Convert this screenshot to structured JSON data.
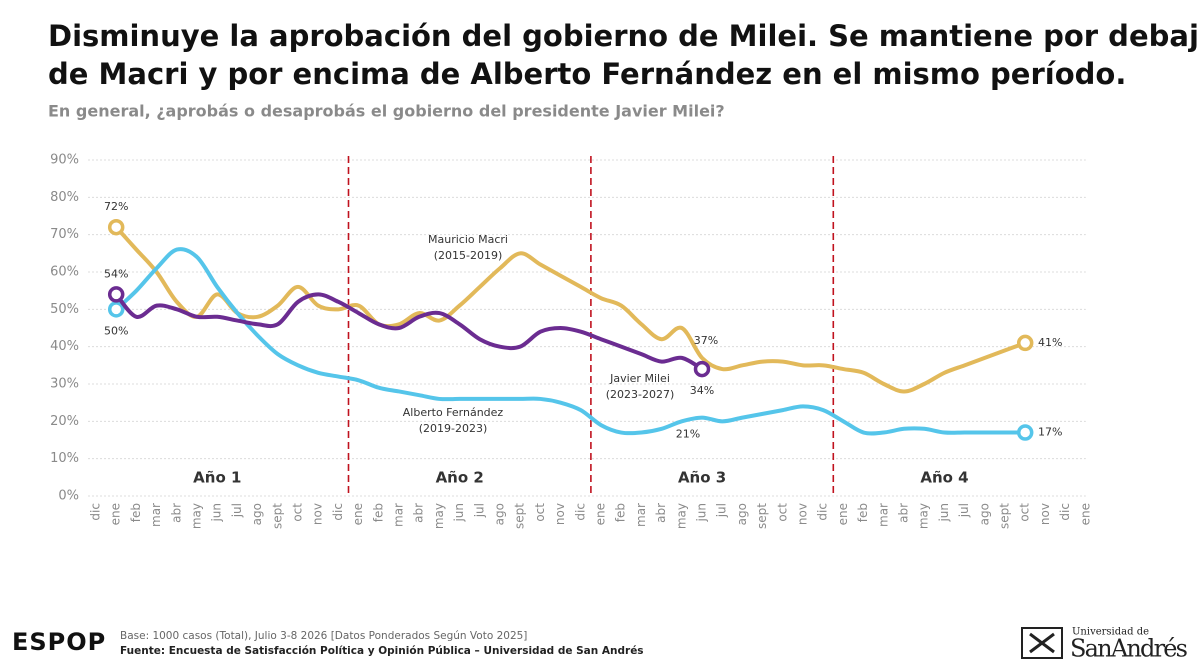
{
  "title_lines": [
    "Disminuye la aprobación del gobierno de Milei. Se mantiene por debajo",
    "de Macri y por encima de Alberto Fernández en el mismo período."
  ],
  "chart_data": {
    "type": "line",
    "subtitle": "En general, ¿aprobás o desaprobás el gobierno del presidente Javier Milei?",
    "categories": [
      "dic",
      "ene",
      "feb",
      "mar",
      "abr",
      "may",
      "jun",
      "jul",
      "ago",
      "sept",
      "oct",
      "nov",
      "dic",
      "ene",
      "feb",
      "mar",
      "abr",
      "may",
      "jun",
      "jul",
      "ago",
      "sept",
      "oct",
      "nov",
      "dic",
      "ene",
      "feb",
      "mar",
      "abr",
      "may",
      "jun",
      "jul",
      "ago",
      "sept",
      "oct",
      "nov",
      "dic",
      "ene",
      "feb",
      "mar",
      "abr",
      "may",
      "jun",
      "jul",
      "ago",
      "sept",
      "oct",
      "nov",
      "dic",
      "ene"
    ],
    "year_labels": [
      "Año 1",
      "Año 2",
      "Año 3",
      "Año 4"
    ],
    "ylim": [
      0,
      90
    ],
    "yticks": [
      {
        "value": 0,
        "label": "0%"
      },
      {
        "value": 10,
        "label": "10%"
      },
      {
        "value": 20,
        "label": "20%"
      },
      {
        "value": 30,
        "label": "30%"
      },
      {
        "value": 40,
        "label": "40%"
      },
      {
        "value": 50,
        "label": "50%"
      },
      {
        "value": 60,
        "label": "60%"
      },
      {
        "value": 70,
        "label": "70%"
      },
      {
        "value": 80,
        "label": "80%"
      },
      {
        "value": 90,
        "label": "90%"
      }
    ],
    "grid": true,
    "series": [
      {
        "name": "Mauricio Macri",
        "period": "(2015-2019)",
        "color": "#e2b95a",
        "values": [
          null,
          72,
          66,
          60,
          52,
          48,
          54,
          49,
          48,
          51,
          56,
          51,
          50,
          51,
          46,
          46,
          49,
          47,
          51,
          56,
          61,
          65,
          62,
          59,
          56,
          53,
          51,
          46,
          42,
          45,
          37,
          34,
          35,
          36,
          36,
          35,
          35,
          34,
          33,
          30,
          28,
          30,
          33,
          35,
          37,
          39,
          41,
          null,
          null,
          null
        ],
        "value_labels": [
          null,
          "72%",
          null,
          null,
          null,
          null,
          null,
          null,
          null,
          null,
          null,
          null,
          null,
          null,
          null,
          null,
          null,
          null,
          null,
          null,
          null,
          null,
          null,
          null,
          null,
          null,
          null,
          null,
          null,
          null,
          "37%",
          null,
          null,
          null,
          null,
          null,
          null,
          null,
          null,
          null,
          null,
          null,
          null,
          null,
          null,
          null,
          "41%",
          null,
          null,
          null
        ]
      },
      {
        "name": "Alberto Fernández",
        "period": "(2019-2023)",
        "color": "#55c5ea",
        "values": [
          null,
          50,
          55,
          61,
          66,
          64,
          56,
          49,
          43,
          38,
          35,
          33,
          32,
          31,
          29,
          28,
          27,
          26,
          26,
          26,
          26,
          26,
          26,
          25,
          23,
          19,
          17,
          17,
          18,
          20,
          21,
          20,
          21,
          22,
          23,
          24,
          23,
          20,
          17,
          17,
          18,
          18,
          17,
          17,
          17,
          17,
          17,
          null,
          null,
          null
        ],
        "value_labels": [
          null,
          "50%",
          null,
          null,
          null,
          null,
          null,
          null,
          null,
          null,
          null,
          null,
          null,
          null,
          null,
          null,
          null,
          null,
          null,
          null,
          null,
          null,
          null,
          null,
          null,
          null,
          null,
          null,
          null,
          null,
          "21%",
          null,
          null,
          null,
          null,
          null,
          null,
          null,
          null,
          null,
          null,
          null,
          null,
          null,
          null,
          null,
          "17%",
          null,
          null,
          null
        ]
      },
      {
        "name": "Javier Milei",
        "period": "(2023-2027)",
        "color": "#6b2c91",
        "values": [
          null,
          54,
          48,
          51,
          50,
          48,
          48,
          47,
          46,
          46,
          52,
          54,
          52,
          49,
          46,
          45,
          48,
          49,
          46,
          42,
          40,
          40,
          44,
          45,
          44,
          42,
          40,
          38,
          36,
          37,
          34,
          null,
          null,
          null,
          null,
          null,
          null,
          null,
          null,
          null,
          null,
          null,
          null,
          null,
          null,
          null,
          null,
          null,
          null,
          null
        ],
        "value_labels": [
          null,
          "54%",
          null,
          null,
          null,
          null,
          null,
          null,
          null,
          null,
          null,
          null,
          null,
          null,
          null,
          null,
          null,
          null,
          null,
          null,
          null,
          null,
          null,
          null,
          null,
          null,
          null,
          null,
          null,
          null,
          "34%",
          null,
          null,
          null,
          null,
          null,
          null,
          null,
          null,
          null,
          null,
          null,
          null,
          null,
          null,
          null,
          null,
          null,
          null,
          null
        ]
      }
    ]
  },
  "footer": {
    "logo": "ESPOP",
    "base": "Base: 1000 casos (Total), Julio 3-8 2026 [Datos Ponderados Según Voto 2025]",
    "source": "Fuente: Encuesta de Satisfacción Política y Opinión Pública – Universidad de San Andrés",
    "university_top": "Universidad de",
    "university_name": "SanAndrés"
  }
}
